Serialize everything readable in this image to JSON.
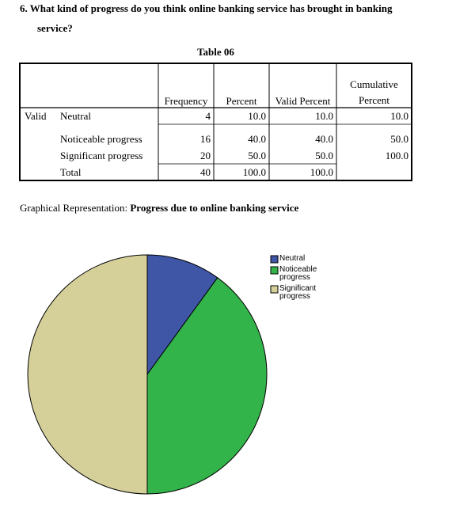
{
  "question": {
    "lines": [
      "6.  What kind of progress do you think online banking service has brought in banking",
      "service?"
    ]
  },
  "table": {
    "title": "Table 06",
    "columns": [
      "Frequency",
      "Percent",
      "Valid Percent",
      "Cumulative Percent"
    ],
    "group": "Valid",
    "rows": [
      [
        "Neutral",
        "4",
        "10.0",
        "10.0",
        "10.0"
      ],
      [
        "Noticeable progress",
        "16",
        "40.0",
        "40.0",
        "50.0"
      ],
      [
        "Significant progress",
        "20",
        "50.0",
        "50.0",
        "100.0"
      ],
      [
        "Total",
        "40",
        "100.0",
        "100.0"
      ]
    ]
  },
  "caption": {
    "prefix": "Graphical Representation:",
    "bold": "Progress due to online banking service"
  },
  "chart_data": {
    "type": "pie",
    "categories": [
      "Neutral",
      "Noticeable progress",
      "Significant progress"
    ],
    "values": [
      10,
      40,
      50
    ],
    "colors": [
      "#3f55a6",
      "#33b44a",
      "#d5d09a"
    ],
    "legend": "upper right"
  }
}
